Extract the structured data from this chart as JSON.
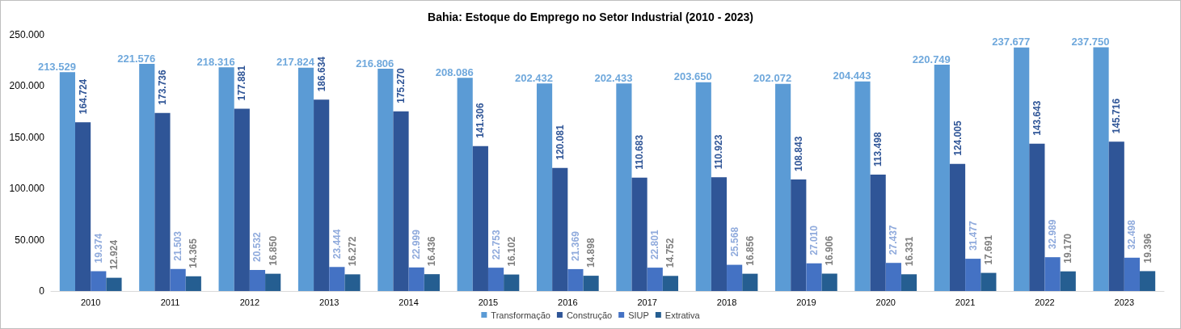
{
  "chart_data": {
    "type": "bar",
    "title": "Bahia: Estoque do Emprego no Setor Industrial (2010 - 2023)",
    "categories": [
      "2010",
      "2011",
      "2012",
      "2013",
      "2014",
      "2015",
      "2016",
      "2017",
      "2018",
      "2019",
      "2020",
      "2021",
      "2022",
      "2023"
    ],
    "series": [
      {
        "name": "Transformação",
        "color": "#5b9bd5",
        "values": [
          213529,
          221576,
          218316,
          217824,
          216806,
          208086,
          202432,
          202433,
          203650,
          202072,
          204443,
          220749,
          237677,
          237750
        ],
        "value_labels": [
          "213.529",
          "221.576",
          "218.316",
          "217.824",
          "216.806",
          "208.086",
          "202.432",
          "202.433",
          "203.650",
          "202.072",
          "204.443",
          "220.749",
          "237.677",
          "237.750"
        ]
      },
      {
        "name": "Construção",
        "color": "#2f5597",
        "values": [
          164724,
          173736,
          177881,
          186634,
          175270,
          141306,
          120081,
          110683,
          110923,
          108843,
          113498,
          124005,
          143643,
          145716
        ],
        "value_labels": [
          "164.724",
          "173.736",
          "177.881",
          "186.634",
          "175.270",
          "141.306",
          "120.081",
          "110.683",
          "110.923",
          "108.843",
          "113.498",
          "124.005",
          "143.643",
          "145.716"
        ]
      },
      {
        "name": "SIUP",
        "color": "#4472c4",
        "values": [
          19374,
          21503,
          20532,
          23444,
          22999,
          22753,
          21369,
          22801,
          25568,
          27010,
          27437,
          31477,
          32989,
          32498
        ],
        "value_labels": [
          "19.374",
          "21.503",
          "20.532",
          "23.444",
          "22.999",
          "22.753",
          "21.369",
          "22.801",
          "25.568",
          "27.010",
          "27.437",
          "31.477",
          "32.989",
          "32.498"
        ]
      },
      {
        "name": "Extrativa",
        "color": "#255e91",
        "values": [
          12924,
          14365,
          16850,
          16272,
          16436,
          16102,
          14898,
          14752,
          16856,
          16906,
          16331,
          17691,
          19170,
          19396
        ],
        "value_labels": [
          "12.924",
          "14.365",
          "16.850",
          "16.272",
          "16.436",
          "16.102",
          "14.898",
          "14.752",
          "16.856",
          "16.906",
          "16.331",
          "17.691",
          "19.170",
          "19.396"
        ]
      }
    ],
    "ylim": [
      0,
      250000
    ],
    "yticks": [
      0,
      {
        "value": 50000,
        "label": "50.000"
      },
      {
        "value": 100000,
        "label": "100.000"
      },
      {
        "value": 150000,
        "label": "150.000"
      },
      {
        "value": 200000,
        "label": "200.000"
      },
      {
        "value": 250000,
        "label": "250.000"
      }
    ],
    "grid": false,
    "legend": "bottom"
  }
}
